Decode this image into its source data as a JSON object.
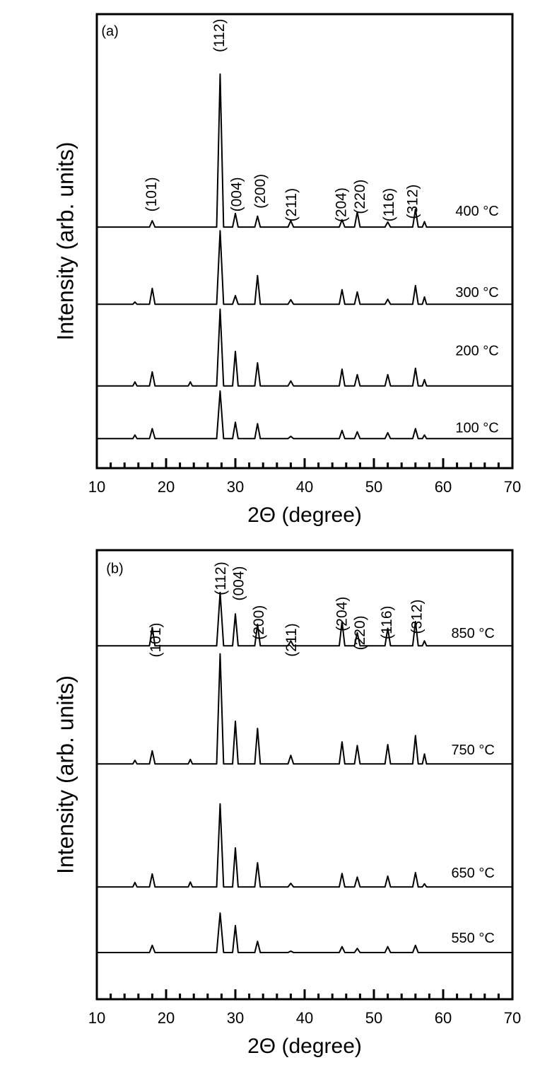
{
  "chart_data": [
    {
      "type": "line",
      "panel_label": "(a)",
      "xlabel": "2Θ (degree)",
      "ylabel": "Intensity (arb. units)",
      "xlim": [
        10,
        70
      ],
      "xticks": [
        10,
        20,
        30,
        40,
        50,
        60,
        70
      ],
      "xminorticks": [
        12,
        14,
        16,
        18,
        22,
        24,
        26,
        28,
        32,
        34,
        36,
        38,
        42,
        44,
        46,
        48,
        52,
        54,
        56,
        58,
        62,
        64,
        66,
        68
      ],
      "ylim": [
        0,
        100
      ],
      "x": [
        10,
        15.2,
        15.5,
        15.8,
        17.6,
        18,
        18.4,
        23.2,
        23.5,
        23.8,
        27.3,
        27.8,
        28.3,
        29.6,
        30,
        30.4,
        32.8,
        33.2,
        33.6,
        37.6,
        38,
        38.4,
        45,
        45.4,
        45.8,
        47.2,
        47.6,
        48,
        51.6,
        52,
        52.4,
        55.6,
        56,
        56.4,
        57,
        57.3,
        57.6,
        70
      ],
      "series": [
        {
          "name": "400 °C",
          "color": "#000000",
          "label_at": [
            64.9,
            56.4
          ],
          "values": [
            53.1,
            53.1,
            53.1,
            53.1,
            53.1,
            54.5,
            53.1,
            53.1,
            53.1,
            53.1,
            53.1,
            86.8,
            53.1,
            53.1,
            56.1,
            53.1,
            53.1,
            55.5,
            53.1,
            53.1,
            54.5,
            53.1,
            53.1,
            54.7,
            53.1,
            53.1,
            56.4,
            53.1,
            53.1,
            54.2,
            53.1,
            53.1,
            57.0,
            53.1,
            53.1,
            54.3,
            53.1,
            53.1
          ]
        },
        {
          "name": "300 °C",
          "color": "#000000",
          "label_at": [
            64.9,
            38.5
          ],
          "values": [
            36.1,
            36.1,
            36.6,
            36.1,
            36.1,
            39.6,
            36.1,
            36.1,
            36.1,
            36.1,
            36.1,
            52.3,
            36.1,
            36.1,
            38.0,
            36.1,
            36.1,
            42.4,
            36.1,
            36.1,
            37.1,
            36.1,
            36.1,
            39.3,
            36.1,
            36.1,
            38.8,
            36.1,
            36.1,
            37.2,
            36.1,
            36.1,
            40.2,
            36.1,
            36.1,
            37.7,
            36.1,
            36.1
          ]
        },
        {
          "name": "200 °C",
          "color": "#000000",
          "label_at": [
            64.9,
            25.7
          ],
          "values": [
            18.1,
            18.1,
            19.0,
            18.1,
            18.1,
            21.2,
            18.1,
            18.1,
            19.0,
            18.1,
            18.1,
            35.0,
            18.1,
            18.1,
            25.7,
            18.1,
            18.1,
            23.2,
            18.1,
            18.1,
            19.2,
            18.1,
            18.1,
            21.8,
            18.1,
            18.1,
            20.6,
            18.1,
            18.1,
            20.6,
            18.1,
            18.1,
            22.0,
            18.1,
            18.1,
            19.5,
            18.1,
            18.1
          ]
        },
        {
          "name": "100 °C",
          "color": "#000000",
          "label_at": [
            64.9,
            8.7
          ],
          "values": [
            6.5,
            6.5,
            7.3,
            6.5,
            6.5,
            8.7,
            6.5,
            6.5,
            6.5,
            6.5,
            6.5,
            17.0,
            6.5,
            6.5,
            10.1,
            6.5,
            6.5,
            9.8,
            6.5,
            6.5,
            7.0,
            6.5,
            6.5,
            8.3,
            6.5,
            6.5,
            8.0,
            6.5,
            6.5,
            7.8,
            6.5,
            6.5,
            8.7,
            6.5,
            6.5,
            7.3,
            6.5,
            6.5
          ]
        }
      ],
      "annotations": [
        {
          "text": "(101)",
          "x": 18,
          "y": 60.3
        },
        {
          "text": "(112)",
          "x": 27.8,
          "y": 95.3
        },
        {
          "text": "(004)",
          "x": 30.3,
          "y": 60.3
        },
        {
          "text": "(200)",
          "x": 33.7,
          "y": 61
        },
        {
          "text": "(211)",
          "x": 38.2,
          "y": 58
        },
        {
          "text": "(204)",
          "x": 45.4,
          "y": 58
        },
        {
          "text": "(220)",
          "x": 48.1,
          "y": 59.8
        },
        {
          "text": "(116)",
          "x": 52.3,
          "y": 58
        },
        {
          "text": "(312)",
          "x": 55.7,
          "y": 58.7
        }
      ],
      "panel_label_at": [
        11.9,
        96.1
      ]
    },
    {
      "type": "line",
      "panel_label": "(b)",
      "xlabel": "2Θ (degree)",
      "ylabel": "Intensity (arb. units)",
      "xlim": [
        10,
        70
      ],
      "xticks": [
        10,
        20,
        30,
        40,
        50,
        60,
        70
      ],
      "xminorticks": [
        12,
        14,
        16,
        18,
        22,
        24,
        26,
        28,
        32,
        34,
        36,
        38,
        42,
        44,
        46,
        48,
        52,
        54,
        56,
        58,
        62,
        64,
        66,
        68
      ],
      "ylim": [
        0,
        100
      ],
      "x": [
        10,
        15.2,
        15.5,
        15.8,
        17.6,
        18,
        18.4,
        23.2,
        23.5,
        23.8,
        27.3,
        27.8,
        28.3,
        29.6,
        30,
        30.4,
        32.8,
        33.2,
        33.6,
        37.6,
        38,
        38.4,
        45,
        45.4,
        45.8,
        47.2,
        47.6,
        48,
        51.6,
        52,
        52.4,
        55.6,
        56,
        56.4,
        57,
        57.3,
        57.6,
        70
      ],
      "series": [
        {
          "name": "850 °C",
          "color": "#000000",
          "label_at": [
            64.3,
            81.3
          ],
          "values": [
            78.7,
            78.7,
            78.7,
            78.7,
            78.7,
            82.8,
            78.7,
            78.7,
            78.7,
            78.7,
            78.7,
            90.6,
            78.7,
            78.7,
            85.8,
            78.7,
            78.7,
            83.5,
            78.7,
            78.7,
            79.8,
            78.7,
            78.7,
            84.1,
            78.7,
            78.7,
            81.6,
            78.7,
            78.7,
            82.6,
            78.7,
            78.7,
            84.1,
            78.7,
            78.7,
            79.8,
            78.7,
            78.7
          ]
        },
        {
          "name": "750 °C",
          "color": "#000000",
          "label_at": [
            64.3,
            55.3
          ],
          "values": [
            52.4,
            52.4,
            53.2,
            52.4,
            52.4,
            55.3,
            52.4,
            52.4,
            53.4,
            52.4,
            52.4,
            76.9,
            52.4,
            52.4,
            61.9,
            52.4,
            52.4,
            60.3,
            52.4,
            52.4,
            54.3,
            52.4,
            52.4,
            57.3,
            52.4,
            52.4,
            56.5,
            52.4,
            52.4,
            56.7,
            52.4,
            52.4,
            58.7,
            52.4,
            52.4,
            54.6,
            52.4,
            52.4
          ]
        },
        {
          "name": "650 °C",
          "color": "#000000",
          "label_at": [
            64.3,
            27.9
          ],
          "values": [
            25.0,
            25.0,
            26.0,
            25.0,
            25.0,
            27.9,
            25.0,
            25.0,
            26.1,
            25.0,
            25.0,
            43.5,
            25.0,
            25.0,
            33.7,
            25.0,
            25.0,
            30.4,
            25.0,
            25.0,
            25.8,
            25.0,
            25.0,
            28.0,
            25.0,
            25.0,
            27.2,
            25.0,
            25.0,
            27.4,
            25.0,
            25.0,
            28.2,
            25.0,
            25.0,
            25.7,
            25.0,
            25.0
          ]
        },
        {
          "name": "550 °C",
          "color": "#000000",
          "label_at": [
            64.3,
            13.4
          ],
          "values": [
            10.4,
            10.4,
            10.4,
            10.4,
            10.4,
            12.0,
            10.4,
            10.4,
            10.4,
            10.4,
            10.4,
            19.2,
            10.4,
            10.4,
            16.4,
            10.4,
            10.4,
            12.9,
            10.4,
            10.4,
            10.7,
            10.4,
            10.4,
            11.7,
            10.4,
            10.4,
            11.3,
            10.4,
            10.4,
            11.7,
            10.4,
            10.4,
            12.0,
            10.4,
            10.4,
            10.4,
            10.4,
            10.4
          ]
        }
      ],
      "annotations": [
        {
          "text": "(101)",
          "x": 18.6,
          "y": 80.0
        },
        {
          "text": "(112)",
          "x": 28,
          "y": 93.7
        },
        {
          "text": "(004)",
          "x": 30.6,
          "y": 92.6
        },
        {
          "text": "(200)",
          "x": 33.5,
          "y": 83.9
        },
        {
          "text": "(211)",
          "x": 38.2,
          "y": 80.0
        },
        {
          "text": "(204)",
          "x": 45.5,
          "y": 85.8
        },
        {
          "text": "(220)",
          "x": 48.1,
          "y": 81.6
        },
        {
          "text": "(116)",
          "x": 52,
          "y": 83.9
        },
        {
          "text": "(312)",
          "x": 56.3,
          "y": 85.2
        }
      ],
      "panel_label_at": [
        12.6,
        95.7
      ]
    }
  ]
}
